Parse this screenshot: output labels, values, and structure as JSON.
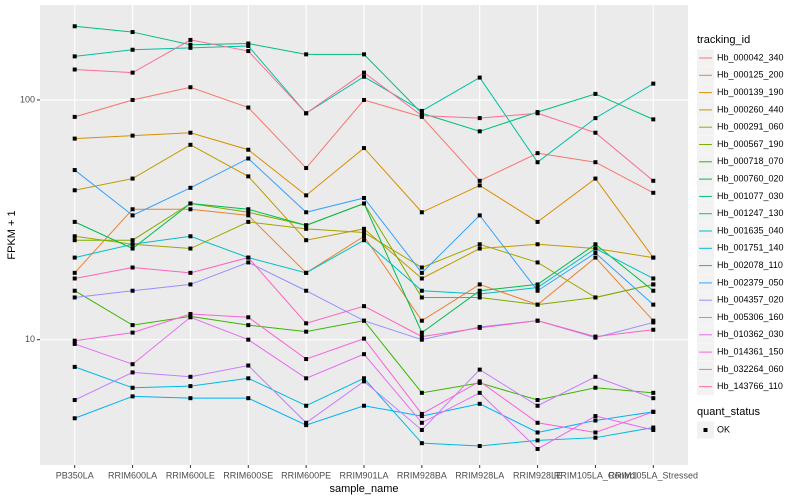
{
  "chart_data": {
    "type": "line",
    "y_label": "FPKM + 1",
    "x_label": "sample_name",
    "log_y": true,
    "grid": true,
    "ylim": [
      3,
      249
    ],
    "yticks": [
      10,
      100
    ],
    "legend_title": "tracking_id",
    "legend_position": "right",
    "point_legend": {
      "title": "quant_status",
      "labels": [
        "OK"
      ],
      "color": "#000000"
    },
    "categories": [
      "PB350LA",
      "RRIM600LA",
      "RRIM600LE",
      "RRIM600SE",
      "RRIM600PE",
      "RRIM901LA",
      "RRIM928BA",
      "RRIM928LA",
      "RRIM928LE",
      "RRIM105LA_Control",
      "RRIM105LA_Stressed"
    ],
    "series": [
      {
        "name": "Hb_000042_340",
        "color": "#F8766D",
        "values": [
          85,
          100,
          113,
          93,
          52,
          100,
          85,
          46,
          60,
          55,
          41
        ]
      },
      {
        "name": "Hb_000125_200",
        "color": "#EA8331",
        "values": [
          19,
          35,
          35,
          33,
          19,
          27,
          12,
          17,
          14,
          22,
          12
        ]
      },
      {
        "name": "Hb_000139_190",
        "color": "#D89000",
        "values": [
          69,
          71,
          73,
          62,
          40,
          63,
          34,
          44,
          31,
          47,
          22
        ]
      },
      {
        "name": "Hb_000260_440",
        "color": "#C09B00",
        "values": [
          42,
          47,
          65,
          48,
          26,
          29,
          18,
          24,
          25,
          24,
          22
        ]
      },
      {
        "name": "Hb_000291_060",
        "color": "#A3A500",
        "values": [
          27,
          25,
          24,
          31,
          29,
          28,
          20,
          25,
          21,
          15,
          17
        ]
      },
      {
        "name": "Hb_000567_190",
        "color": "#7CAE00",
        "values": [
          26,
          26,
          37,
          34,
          30,
          37,
          15,
          15,
          14,
          15,
          17
        ]
      },
      {
        "name": "Hb_000718_070",
        "color": "#39B600",
        "values": [
          16,
          11.5,
          12.5,
          11.5,
          10.8,
          12,
          6,
          6.6,
          5.6,
          6.3,
          6
        ]
      },
      {
        "name": "Hb_000760_020",
        "color": "#00BB4E",
        "values": [
          31,
          24,
          37,
          35,
          30,
          37,
          10.7,
          16,
          17,
          25,
          16
        ]
      },
      {
        "name": "Hb_001077_030",
        "color": "#00BF7D",
        "values": [
          203,
          192,
          170,
          172,
          155,
          155,
          88,
          74,
          89,
          106,
          83
        ]
      },
      {
        "name": "Hb_001247_130",
        "color": "#00C1A3",
        "values": [
          152,
          162,
          165,
          168,
          88,
          125,
          90,
          124,
          55,
          84,
          117
        ]
      },
      {
        "name": "Hb_001635_040",
        "color": "#00BFC4",
        "values": [
          22,
          25,
          27,
          22,
          19,
          26,
          16,
          15.5,
          16.5,
          24,
          18
        ]
      },
      {
        "name": "Hb_001751_140",
        "color": "#00BAE0",
        "values": [
          7.7,
          6.3,
          6.4,
          6.9,
          5.3,
          6.9,
          3.7,
          3.6,
          3.8,
          3.9,
          4.3
        ]
      },
      {
        "name": "Hb_002078_110",
        "color": "#00B0F6",
        "values": [
          4.7,
          5.8,
          5.7,
          5.7,
          4.4,
          5.3,
          4.8,
          5.4,
          4.1,
          4.6,
          5
        ]
      },
      {
        "name": "Hb_002379_050",
        "color": "#35A2FF",
        "values": [
          51,
          33,
          43,
          57,
          34,
          39,
          19,
          33,
          16,
          23,
          14
        ]
      },
      {
        "name": "Hb_004357_020",
        "color": "#9590FF",
        "values": [
          15,
          16,
          17,
          21,
          16,
          12,
          10,
          11.3,
          12,
          10.2,
          11.8
        ]
      },
      {
        "name": "Hb_005306_160",
        "color": "#C77CFF",
        "values": [
          5.6,
          7.3,
          7,
          7.8,
          4.5,
          6.7,
          4.2,
          7.5,
          5.3,
          7,
          5.7
        ]
      },
      {
        "name": "Hb_010362_030",
        "color": "#E76BF3",
        "values": [
          9.6,
          7.9,
          12.4,
          10,
          6.9,
          8.7,
          4.5,
          6,
          3.5,
          4.8,
          4.2
        ]
      },
      {
        "name": "Hb_014361_150",
        "color": "#FA62DB",
        "values": [
          9.9,
          10.7,
          12.8,
          12.4,
          8.3,
          10.1,
          4.9,
          6.7,
          4.5,
          4.1,
          5
        ]
      },
      {
        "name": "Hb_032264_060",
        "color": "#FF62BC",
        "values": [
          18,
          20,
          19,
          22,
          11.7,
          13.8,
          10.3,
          11.2,
          12,
          10.3,
          11
        ]
      },
      {
        "name": "Hb_143766_110",
        "color": "#FF6C91",
        "values": [
          134,
          130,
          178,
          160,
          88,
          130,
          86,
          84,
          88,
          73,
          46
        ]
      }
    ]
  }
}
